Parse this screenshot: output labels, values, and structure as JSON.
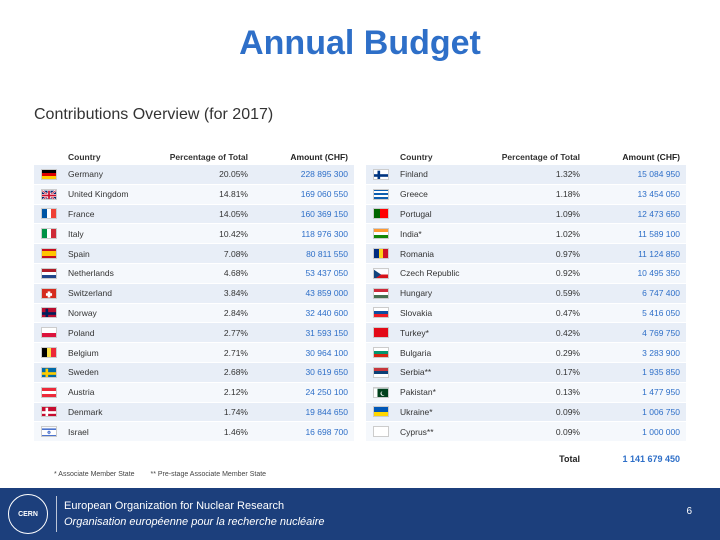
{
  "title": "Annual Budget",
  "subtitle": "Contributions Overview (for 2017)",
  "table": {
    "headers": {
      "country": "Country",
      "percentage": "Percentage of Total",
      "amount": "Amount (CHF)"
    },
    "left": [
      {
        "country": "Germany",
        "pct": "20.05%",
        "amount": "228 895 300",
        "flag": "germany"
      },
      {
        "country": "United Kingdom",
        "pct": "14.81%",
        "amount": "169 060 550",
        "flag": "uk"
      },
      {
        "country": "France",
        "pct": "14.05%",
        "amount": "160 369 150",
        "flag": "france"
      },
      {
        "country": "Italy",
        "pct": "10.42%",
        "amount": "118 976 300",
        "flag": "italy"
      },
      {
        "country": "Spain",
        "pct": "7.08%",
        "amount": "80 811 550",
        "flag": "spain"
      },
      {
        "country": "Netherlands",
        "pct": "4.68%",
        "amount": "53 437 050",
        "flag": "netherlands"
      },
      {
        "country": "Switzerland",
        "pct": "3.84%",
        "amount": "43 859 000",
        "flag": "switzerland"
      },
      {
        "country": "Norway",
        "pct": "2.84%",
        "amount": "32 440 600",
        "flag": "norway"
      },
      {
        "country": "Poland",
        "pct": "2.77%",
        "amount": "31 593 150",
        "flag": "poland"
      },
      {
        "country": "Belgium",
        "pct": "2.71%",
        "amount": "30 964 100",
        "flag": "belgium"
      },
      {
        "country": "Sweden",
        "pct": "2.68%",
        "amount": "30 619 650",
        "flag": "sweden"
      },
      {
        "country": "Austria",
        "pct": "2.12%",
        "amount": "24 250 100",
        "flag": "austria"
      },
      {
        "country": "Denmark",
        "pct": "1.74%",
        "amount": "19 844 650",
        "flag": "denmark"
      },
      {
        "country": "Israel",
        "pct": "1.46%",
        "amount": "16 698 700",
        "flag": "israel"
      }
    ],
    "right": [
      {
        "country": "Finland",
        "pct": "1.32%",
        "amount": "15 084 950",
        "flag": "finland"
      },
      {
        "country": "Greece",
        "pct": "1.18%",
        "amount": "13 454 050",
        "flag": "greece"
      },
      {
        "country": "Portugal",
        "pct": "1.09%",
        "amount": "12 473 650",
        "flag": "portugal"
      },
      {
        "country": "India*",
        "pct": "1.02%",
        "amount": "11 589 100",
        "flag": "india"
      },
      {
        "country": "Romania",
        "pct": "0.97%",
        "amount": "11 124 850",
        "flag": "romania"
      },
      {
        "country": "Czech Republic",
        "pct": "0.92%",
        "amount": "10 495 350",
        "flag": "czech"
      },
      {
        "country": "Hungary",
        "pct": "0.59%",
        "amount": "6 747 400",
        "flag": "hungary"
      },
      {
        "country": "Slovakia",
        "pct": "0.47%",
        "amount": "5 416 050",
        "flag": "slovakia"
      },
      {
        "country": "Turkey*",
        "pct": "0.42%",
        "amount": "4 769 750",
        "flag": "turkey"
      },
      {
        "country": "Bulgaria",
        "pct": "0.29%",
        "amount": "3 283 900",
        "flag": "bulgaria"
      },
      {
        "country": "Serbia**",
        "pct": "0.17%",
        "amount": "1 935 850",
        "flag": "serbia"
      },
      {
        "country": "Pakistan*",
        "pct": "0.13%",
        "amount": "1 477 950",
        "flag": "pakistan"
      },
      {
        "country": "Ukraine*",
        "pct": "0.09%",
        "amount": "1 006 750",
        "flag": "ukraine"
      },
      {
        "country": "Cyprus**",
        "pct": "0.09%",
        "amount": "1 000 000",
        "flag": "cyprus"
      }
    ],
    "total_label": "Total",
    "total_value": "1 141 679 450"
  },
  "footnotes": {
    "associate": "* Associate Member State",
    "prestage": "** Pre-stage Associate Member State"
  },
  "footer": {
    "logo_text": "CERN",
    "org_en": "European Organization for Nuclear Research",
    "org_fr": "Organisation européenne pour la recherche nucléaire",
    "page": "6"
  },
  "colors": {
    "accent": "#2e6fc8",
    "footer": "#1c3f7c"
  }
}
